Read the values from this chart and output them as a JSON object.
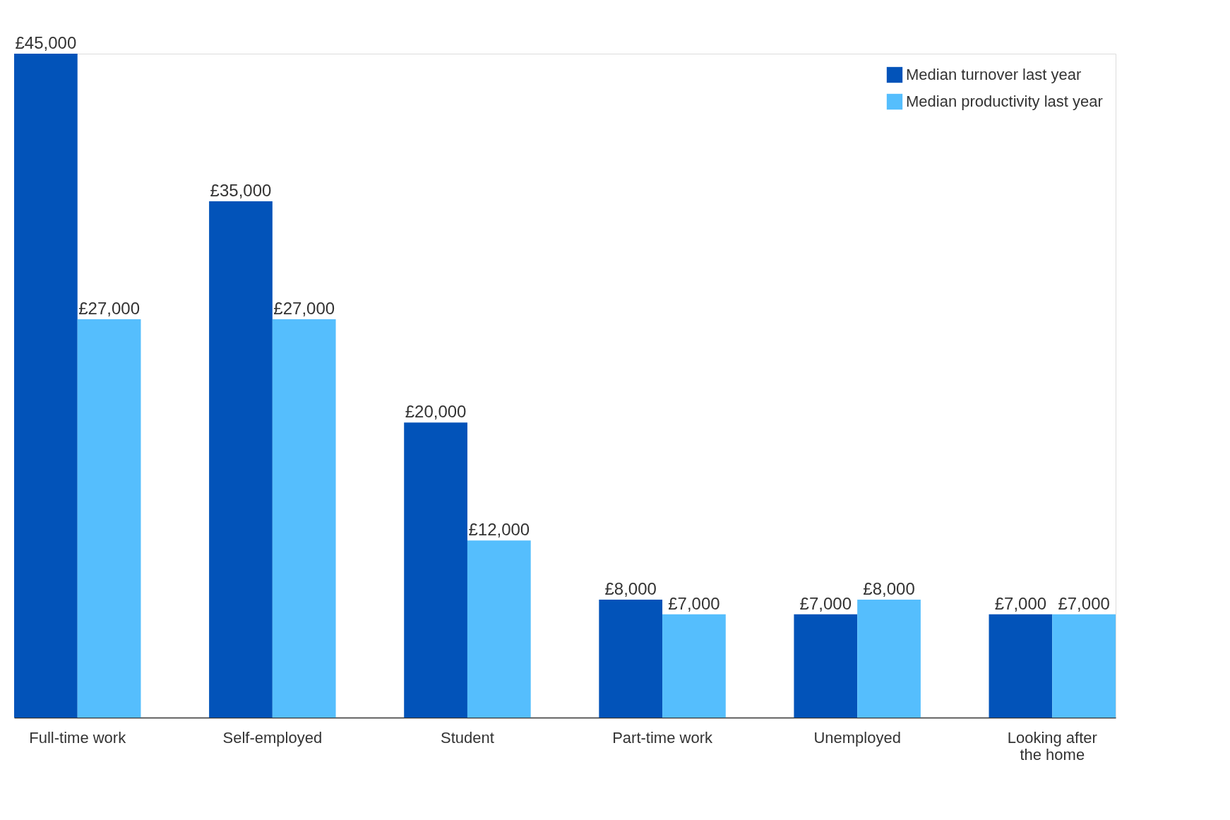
{
  "chart_data": {
    "type": "bar",
    "categories": [
      "Full-time work",
      "Self-employed",
      "Student",
      "Part-time work",
      "Unemployed",
      "Looking after the home"
    ],
    "series": [
      {
        "name": "Median turnover last year",
        "color": "#0253b9",
        "values": [
          45000,
          35000,
          20000,
          8000,
          7000,
          7000
        ],
        "value_labels": [
          "£45,000",
          "£35,000",
          "£20,000",
          "£8,000",
          "£7,000",
          "£7,000"
        ]
      },
      {
        "name": "Median productivity last year",
        "color": "#55befd",
        "values": [
          27000,
          27000,
          12000,
          7000,
          8000,
          7000
        ],
        "value_labels": [
          "£27,000",
          "£27,000",
          "£12,000",
          "£7,000",
          "£8,000",
          "£7,000"
        ]
      }
    ],
    "ylim": [
      0,
      45000
    ],
    "tick_labels": "x",
    "grid": false,
    "legend": "top right"
  }
}
